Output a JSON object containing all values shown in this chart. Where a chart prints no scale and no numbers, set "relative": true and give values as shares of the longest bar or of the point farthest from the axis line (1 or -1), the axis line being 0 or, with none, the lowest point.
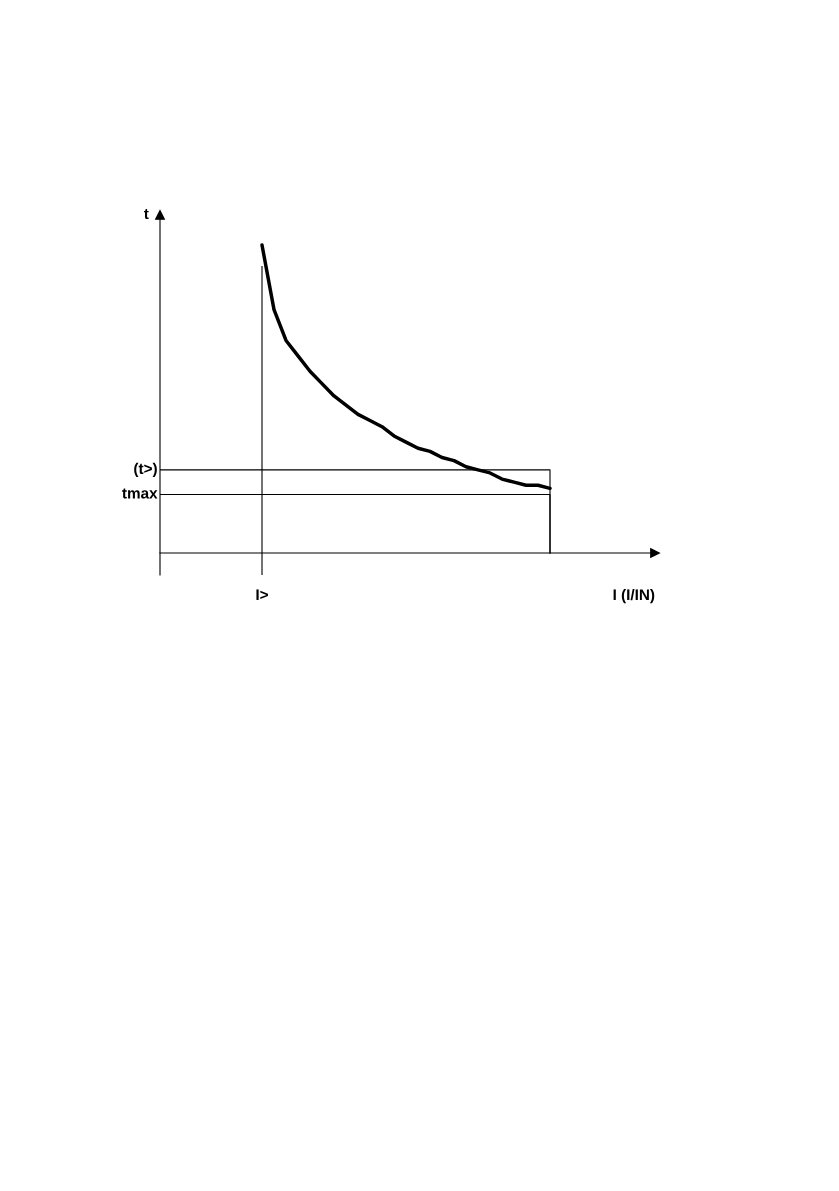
{
  "chart_data": {
    "type": "line",
    "relative": true,
    "xlabel": "I (I/IN)",
    "annotations": [
      "I>",
      "t"
    ],
    "categories": [
      null,
      null,
      null,
      null,
      null,
      null,
      null,
      null,
      null,
      null,
      null,
      null,
      null,
      null,
      null,
      null,
      null,
      null,
      null,
      null,
      null,
      null,
      null,
      null,
      null
    ],
    "series": [
      {
        "color": "#000000",
        "values": [
          1.0,
          0.79,
          0.69,
          0.64,
          0.59,
          0.55,
          0.51,
          0.48,
          0.45,
          0.43,
          0.41,
          0.38,
          0.36,
          0.34,
          0.33,
          0.31,
          0.3,
          0.28,
          0.27,
          0.26,
          0.24,
          0.23,
          0.22,
          0.22,
          0.21
        ]
      }
    ],
    "ref_lines": [
      {
        "axis": "y",
        "value": 0.27,
        "label": "(t>)",
        "color": "#000000"
      },
      {
        "axis": "y",
        "value": 0.19,
        "label": "tmax",
        "color": "#000000"
      }
    ],
    "legend": false,
    "marker": "none",
    "line_style": "solid"
  }
}
